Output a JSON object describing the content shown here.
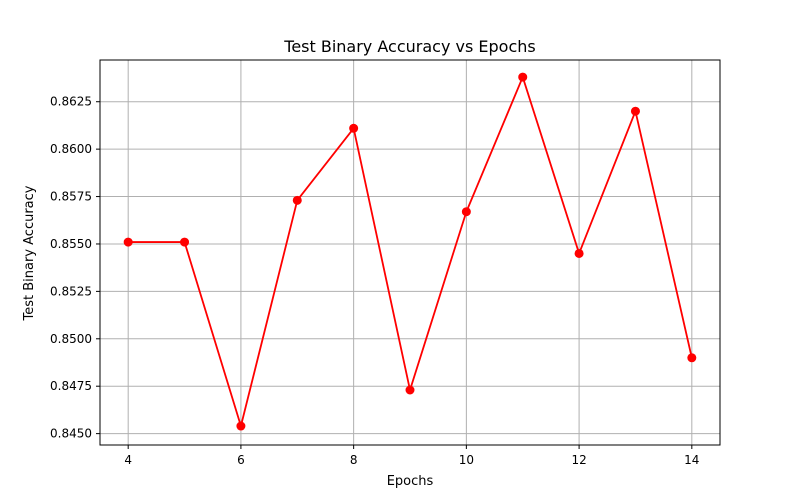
{
  "chart_data": {
    "type": "line",
    "title": "Test Binary Accuracy vs Epochs",
    "xlabel": "Epochs",
    "ylabel": "Test Binary Accuracy",
    "xlim": [
      3.5,
      14.5
    ],
    "ylim": [
      0.8444,
      0.8647
    ],
    "grid": true,
    "legend": "none",
    "x_ticks": [
      4,
      6,
      8,
      10,
      12,
      14
    ],
    "y_ticks": [
      0.845,
      0.8475,
      0.85,
      0.8525,
      0.855,
      0.8575,
      0.86,
      0.8625
    ],
    "x_tick_labels": [
      "4",
      "6",
      "8",
      "10",
      "12",
      "14"
    ],
    "y_tick_labels": [
      "0.8450",
      "0.8475",
      "0.8500",
      "0.8525",
      "0.8550",
      "0.8575",
      "0.8600",
      "0.8625"
    ],
    "series": [
      {
        "color": "#ff0000",
        "marker": "circle",
        "x": [
          4,
          5,
          6,
          7,
          8,
          9,
          10,
          11,
          12,
          13,
          14
        ],
        "y": [
          0.8551,
          0.8551,
          0.8454,
          0.8573,
          0.8611,
          0.8473,
          0.8567,
          0.8638,
          0.8545,
          0.862,
          0.849
        ]
      }
    ]
  }
}
